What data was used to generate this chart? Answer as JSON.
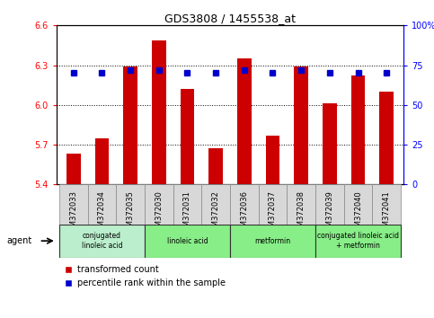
{
  "title": "GDS3808 / 1455538_at",
  "categories": [
    "GSM372033",
    "GSM372034",
    "GSM372035",
    "GSM372030",
    "GSM372031",
    "GSM372032",
    "GSM372036",
    "GSM372037",
    "GSM372038",
    "GSM372039",
    "GSM372040",
    "GSM372041"
  ],
  "bar_values": [
    5.63,
    5.75,
    6.29,
    6.49,
    6.12,
    5.67,
    6.35,
    5.77,
    6.29,
    6.01,
    6.22,
    6.1
  ],
  "percentile_values": [
    70,
    70,
    72,
    72,
    70,
    70,
    72,
    70,
    72,
    70,
    70,
    70
  ],
  "bar_bottom": 5.4,
  "ylim": [
    5.4,
    6.6
  ],
  "ylim_right": [
    0,
    100
  ],
  "bar_color": "#cc0000",
  "percentile_color": "#0000cc",
  "yticks_left": [
    5.4,
    5.7,
    6.0,
    6.3,
    6.6
  ],
  "yticks_right": [
    0,
    25,
    50,
    75,
    100
  ],
  "yticks_right_labels": [
    "0",
    "25",
    "50",
    "75",
    "100%"
  ],
  "gridlines": [
    5.7,
    6.0,
    6.3
  ],
  "agent_groups": [
    {
      "label": "conjugated\nlinoleic acid",
      "start": 0,
      "end": 3,
      "color": "#bbeecc"
    },
    {
      "label": "linoleic acid",
      "start": 3,
      "end": 6,
      "color": "#88ee88"
    },
    {
      "label": "metformin",
      "start": 6,
      "end": 9,
      "color": "#88ee88"
    },
    {
      "label": "conjugated linoleic acid\n+ metformin",
      "start": 9,
      "end": 12,
      "color": "#88ee88"
    }
  ],
  "legend_bar_label": "transformed count",
  "legend_pct_label": "percentile rank within the sample",
  "agent_label": "agent",
  "bar_width": 0.5,
  "tick_label_bg": "#dddddd",
  "figure_bg": "#ffffff"
}
